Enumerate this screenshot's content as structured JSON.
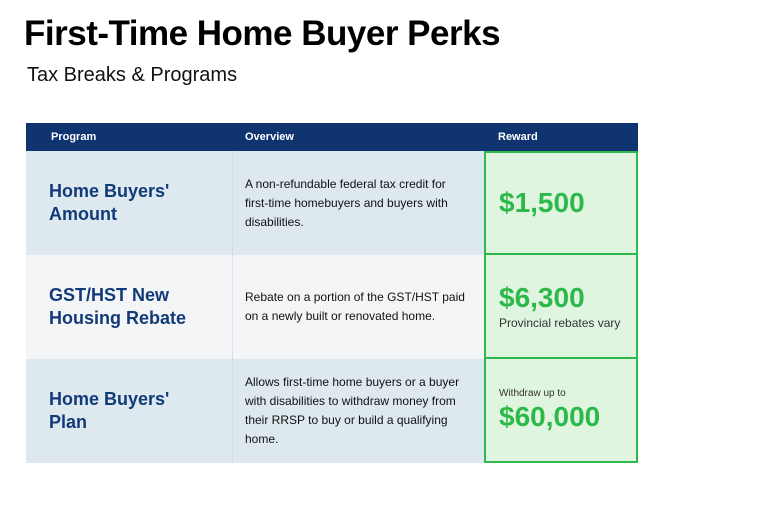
{
  "title": "First-Time Home Buyer Perks",
  "subtitle": "Tax Breaks & Programs",
  "headers": [
    "Program",
    "Overview",
    "Reward"
  ],
  "rows": [
    {
      "program": "Home Buyers' Amount",
      "overview": "A non-refundable federal tax credit for first-time homebuyers and buyers with disabilities.",
      "reward_pre": "",
      "reward": "$1,500",
      "reward_note": ""
    },
    {
      "program": "GST/HST New Housing Rebate",
      "overview": "Rebate on a portion of the GST/HST paid on a newly built or renovated home.",
      "reward_pre": "",
      "reward": "$6,300",
      "reward_note": "Provincial rebates vary"
    },
    {
      "program": "Home Buyers' Plan",
      "overview": "Allows first-time home buyers or a buyer with disabilities to withdraw money from their RRSP to buy or build a qualifying home.",
      "reward_pre": "Withdraw up to",
      "reward": "$60,000",
      "reward_note": ""
    }
  ],
  "colors": {
    "header": "#0f3470",
    "program_text": "#123a78",
    "reward_green": "#2db84b",
    "reward_bg": "#dff5df"
  }
}
